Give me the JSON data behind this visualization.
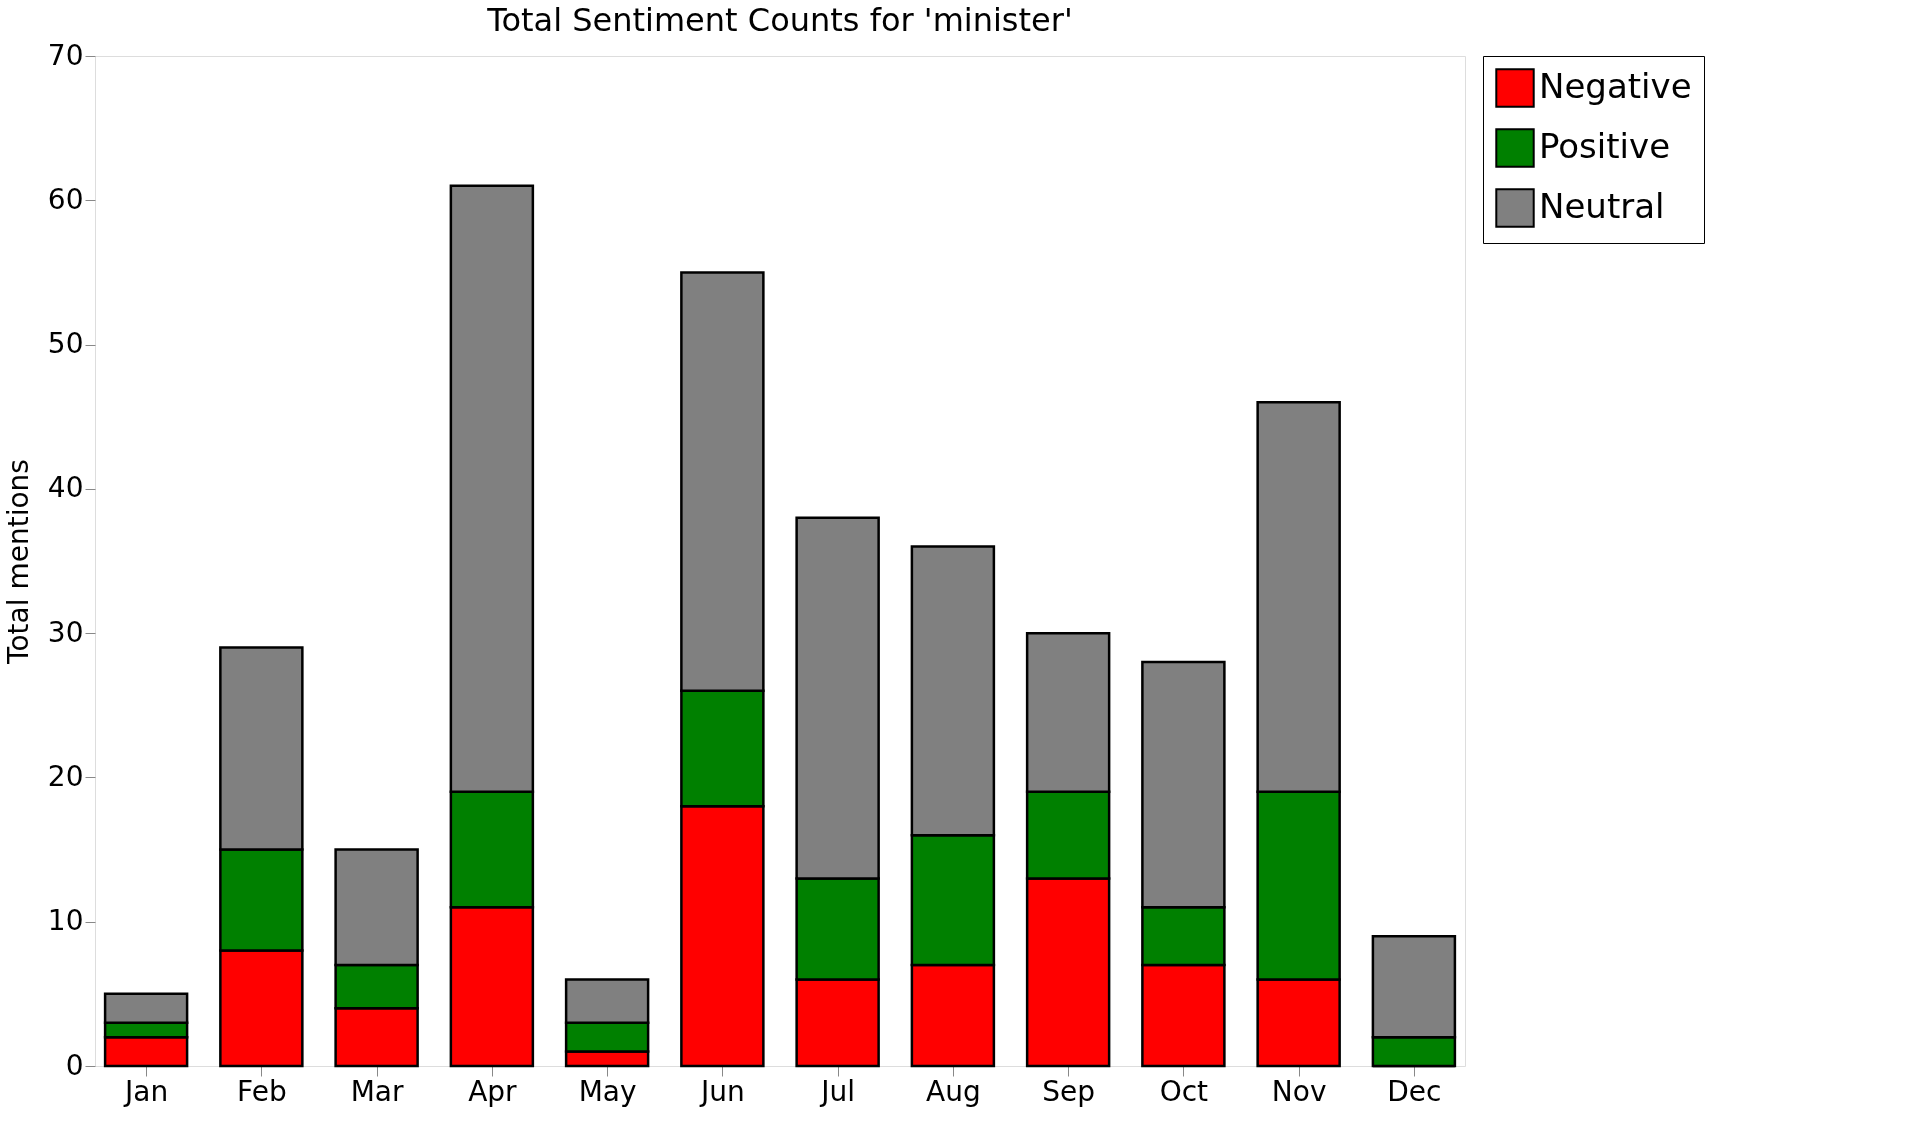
{
  "chart_data": {
    "type": "bar",
    "title": "Total Sentiment Counts for 'minister'",
    "ylabel": "Total mentions",
    "stacked": true,
    "categories": [
      "Jan",
      "Feb",
      "Mar",
      "Apr",
      "May",
      "Jun",
      "Jul",
      "Aug",
      "Sep",
      "Oct",
      "Nov",
      "Dec"
    ],
    "series": [
      {
        "name": "Negative",
        "color": "#ff0000",
        "values": [
          2,
          8,
          4,
          11,
          1,
          18,
          6,
          7,
          13,
          7,
          6,
          0
        ]
      },
      {
        "name": "Positive",
        "color": "#008000",
        "values": [
          1,
          7,
          3,
          8,
          2,
          8,
          7,
          9,
          6,
          4,
          13,
          2
        ]
      },
      {
        "name": "Neutral",
        "color": "#808080",
        "values": [
          2,
          14,
          8,
          42,
          3,
          29,
          25,
          20,
          11,
          17,
          27,
          7
        ]
      }
    ],
    "ylim": [
      0,
      70
    ],
    "yticks": [
      0,
      10,
      20,
      30,
      40,
      50,
      60,
      70
    ],
    "grid": false,
    "legend": "top right"
  }
}
